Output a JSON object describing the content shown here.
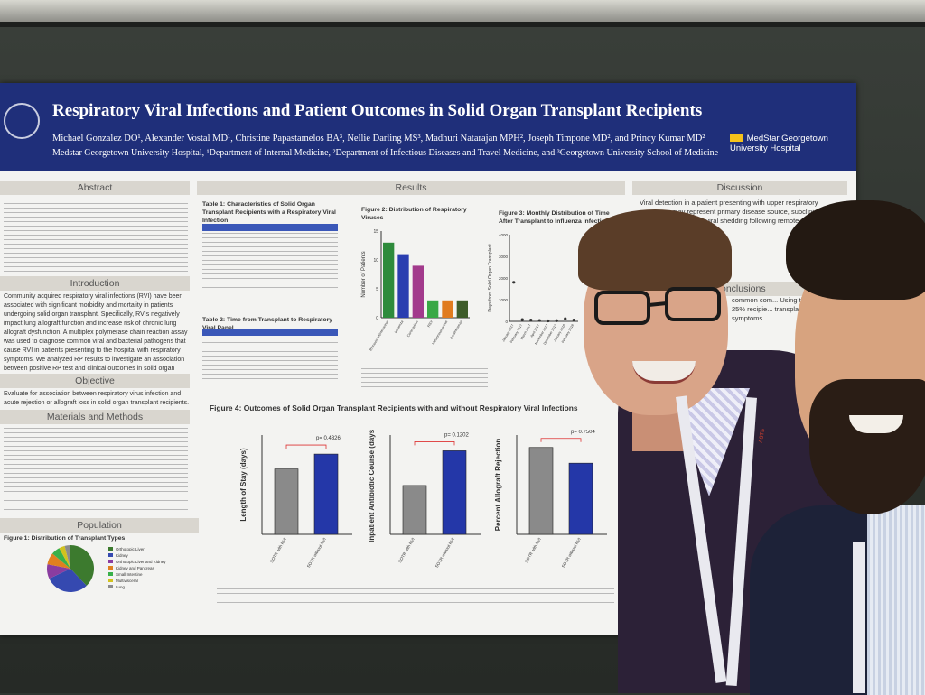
{
  "poster": {
    "title": "Respiratory Viral Infections and Patient Outcomes in Solid Organ Transplant Recipients",
    "authors": "Michael Gonzalez DO¹, Alexander Vostal MD¹, Christine Papastamelos BA³, Nellie Darling MS³, Madhuri Natarajan MPH², Joseph Timpone MD², and Princy Kumar MD²",
    "affiliations": "Medstar Georgetown University Hospital, ¹Department of Internal Medicine, ²Department of Infectious Diseases and Travel Medicine, and ³Georgetown University School of Medicine",
    "brand": "MedStar Georgetown University Hospital",
    "sections": {
      "abstract": "Abstract",
      "introduction": "Introduction",
      "objective": "Objective",
      "methods": "Materials and Methods",
      "population": "Population",
      "results": "Results",
      "discussion": "Discussion",
      "conclusions": "Conclusions"
    },
    "intro_text": "Community acquired respiratory viral infections (RVI) have been associated with significant morbidity and mortality in patients undergoing solid organ transplant. Specifically, RVIs negatively impact lung allograft function and increase risk of chronic lung allograft dysfunction. A multiplex polymerase chain reaction assay was used to diagnose common viral and bacterial pathogens that cause RVI in patients presenting to the hospital with respiratory symptoms. We analyzed RP results to investigate an association between positive RP test and clinical outcomes in solid organ transplant recipients (SOTR).",
    "objective_text": "Evaluate for association between respiratory virus infection and acute rejection or allograft loss in solid organ transplant recipients.",
    "population_fig": "Figure 1: Distribution of Transplant Types",
    "table1_title": "Table 1: Characteristics of Solid Organ Transplant Recipients with a Respiratory Viral Infection",
    "table2_title": "Table 2: Time from Transplant to Respiratory Viral Panel",
    "fig2_title": "Figure 2: Distribution of Respiratory Viruses",
    "fig3_title": "Figure 3: Monthly Distribution of Time After Transplant to Influenza Infection",
    "fig4_title": "Figure 4: Outcomes of Solid Organ Transplant Recipients with and without Respiratory Viral Infections",
    "fig2_ylabel": "Number of Patients",
    "fig3_ylabel": "Days from Solid Organ Transplant",
    "discussion_text": "Viral detection in a patient presenting with upper respiratory symptoms may represent primary disease source, subclinical infection or persistent viral shedding following remote infection.",
    "conclusion_text": "common com... Using the Fi... of 25% recipie... transplant recip... symptoms."
  },
  "chart_data": [
    {
      "type": "bar",
      "title": "Figure 2: Distribution of Respiratory Viruses",
      "ylabel": "Number of Patients",
      "categories": [
        "Rhinovirus/Enterovirus",
        "Influenza",
        "Coronavirus",
        "RSV",
        "Metapneumovirus",
        "Parainfluenza"
      ],
      "values": [
        13,
        11,
        9,
        3,
        3,
        3
      ],
      "ylim": [
        0,
        15
      ],
      "yticks": [
        0,
        5,
        10,
        15
      ],
      "colors": [
        "#2e8b3c",
        "#2a3eb0",
        "#a23a8c",
        "#39a845",
        "#e07b1f",
        "#3e5c2a"
      ]
    },
    {
      "type": "scatter",
      "title": "Figure 3: Monthly Distribution of Time After Transplant to Influenza Infection",
      "ylabel": "Days from Solid Organ Transplant",
      "categories": [
        "January 2017",
        "February 2017",
        "March 2017",
        "April 2017",
        "November 2017",
        "December 2017",
        "January 2018",
        "February 2018"
      ],
      "values": [
        1800,
        80,
        60,
        40,
        20,
        30,
        120,
        60
      ],
      "ylim": [
        0,
        4000
      ],
      "yticks": [
        0,
        1000,
        2000,
        3000,
        4000
      ]
    },
    {
      "type": "bar",
      "title": "Length of Stay",
      "ylabel": "Length of Stay (days)",
      "categories": [
        "SOTR with RVI",
        "SOTR without RVI"
      ],
      "values": [
        7.9,
        9.7
      ],
      "ylim": [
        0,
        12
      ],
      "pvalue": "p= 0.4326",
      "colors": [
        "#8a8a8a",
        "#2437a8"
      ]
    },
    {
      "type": "bar",
      "title": "Inpatient Antibiotic Course",
      "ylabel": "Inpatient Antibiotic Course (days)",
      "categories": [
        "SOTR with RVI",
        "SOTR without RVI"
      ],
      "values": [
        5.9,
        10.1
      ],
      "ylim": [
        0,
        12
      ],
      "pvalue": "p= 0.1202",
      "colors": [
        "#8a8a8a",
        "#2437a8"
      ]
    },
    {
      "type": "bar",
      "title": "Percent Allograft Rejection",
      "ylabel": "Percent Allograft Rejection",
      "categories": [
        "SOTR with RVI",
        "SOTR without RVI"
      ],
      "values": [
        10.5,
        8.6
      ],
      "ylim": [
        0,
        12
      ],
      "pvalue": "p= 0.7504",
      "colors": [
        "#8a8a8a",
        "#2437a8"
      ]
    },
    {
      "type": "pie",
      "title": "Figure 1: Distribution of Transplant Types",
      "categories": [
        "Orthotopic Liver",
        "Kidney",
        "Orthotopic Liver and Kidney",
        "Kidney and Pancreas",
        "Small Intestine",
        "Multivisceral",
        "Lung"
      ],
      "values": [
        38,
        30,
        10,
        8,
        6,
        4,
        4
      ],
      "colors": [
        "#3c7a2e",
        "#3549b0",
        "#8a3ca0",
        "#e0801f",
        "#39b04a",
        "#d2c21e",
        "#8c8c8c"
      ]
    }
  ],
  "lanyard": {
    "text": "ASTS"
  }
}
